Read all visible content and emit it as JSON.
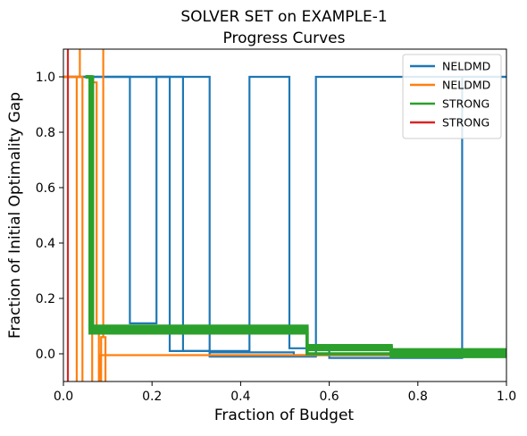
{
  "chart_data": {
    "type": "line",
    "title": "SOLVER SET on EXAMPLE-1",
    "subtitle": "Progress Curves",
    "xlabel": "Fraction of Budget",
    "ylabel": "Fraction of Initial Optimality Gap",
    "xlim": [
      0,
      1
    ],
    "ylim": [
      -0.1,
      1.1
    ],
    "xticks": [
      0.0,
      0.2,
      0.4,
      0.6,
      0.8,
      1.0
    ],
    "xtick_labels": [
      "0.0",
      "0.2",
      "0.4",
      "0.6",
      "0.8",
      "1.0"
    ],
    "yticks": [
      0.0,
      0.2,
      0.4,
      0.6,
      0.8,
      1.0
    ],
    "ytick_labels": [
      "0.0",
      "0.2",
      "0.4",
      "0.6",
      "0.8",
      "1.0"
    ],
    "grid": false,
    "legend_position": "top-right",
    "legend": [
      {
        "label": "NELDMD",
        "color": "#1f77b4"
      },
      {
        "label": "NELDMD",
        "color": "#ff7f0e"
      },
      {
        "label": "STRONG",
        "color": "#2ca02c"
      },
      {
        "label": "STRONG",
        "color": "#d62728"
      }
    ],
    "series": [
      {
        "color": "#1f77b4",
        "points": [
          [
            0,
            1
          ],
          [
            0.15,
            1
          ],
          [
            0.15,
            0.11
          ],
          [
            0.21,
            0.11
          ],
          [
            0.21,
            1
          ],
          [
            0.24,
            1
          ],
          [
            0.24,
            0.01
          ],
          [
            0.33,
            0.01
          ],
          [
            0.33,
            -0.01
          ],
          [
            0.57,
            -0.01
          ],
          [
            0.57,
            1
          ],
          [
            1,
            1
          ]
        ]
      },
      {
        "color": "#1f77b4",
        "points": [
          [
            0,
            1
          ],
          [
            0.27,
            1
          ],
          [
            0.27,
            0.01
          ],
          [
            0.42,
            0.01
          ],
          [
            0.42,
            1
          ],
          [
            0.51,
            1
          ],
          [
            0.51,
            0.02
          ],
          [
            0.6,
            0.02
          ],
          [
            0.6,
            -0.015
          ],
          [
            0.9,
            -0.015
          ],
          [
            0.9,
            1
          ],
          [
            1,
            1
          ]
        ]
      },
      {
        "color": "#1f77b4",
        "points": [
          [
            0,
            1
          ],
          [
            0.33,
            1
          ],
          [
            0.33,
            0.005
          ],
          [
            0.52,
            0.005
          ],
          [
            0.52,
            -0.005
          ],
          [
            0.74,
            -0.005
          ],
          [
            0.74,
            -0.005
          ],
          [
            1,
            -0.005
          ]
        ]
      },
      {
        "color": "#ff7f0e",
        "points": [
          [
            0,
            1
          ],
          [
            0.03,
            1
          ],
          [
            0.03,
            -0.12
          ]
        ]
      },
      {
        "color": "#ff7f0e",
        "points": [
          [
            0,
            1
          ],
          [
            0.037,
            1
          ],
          [
            0.037,
            1.12
          ]
        ]
      },
      {
        "color": "#ff7f0e",
        "points": [
          [
            0,
            1
          ],
          [
            0.043,
            1
          ],
          [
            0.043,
            -0.12
          ]
        ]
      },
      {
        "color": "#ff7f0e",
        "points": [
          [
            0.065,
            -0.12
          ],
          [
            0.065,
            0.98
          ],
          [
            0.075,
            0.98
          ],
          [
            0.075,
            0.08
          ],
          [
            0.08,
            0.08
          ],
          [
            0.08,
            -0.12
          ]
        ]
      },
      {
        "color": "#ff7f0e",
        "points": [
          [
            0.085,
            -0.12
          ],
          [
            0.085,
            0.06
          ],
          [
            0.09,
            0.06
          ],
          [
            0.09,
            1.12
          ]
        ]
      },
      {
        "color": "#ff7f0e",
        "points": [
          [
            0.095,
            -0.12
          ],
          [
            0.095,
            0.06
          ],
          [
            0.085,
            0.06
          ]
        ]
      },
      {
        "color": "#ff7f0e",
        "points": [
          [
            0.082,
            -0.12
          ],
          [
            0.082,
            -0.005
          ],
          [
            0.55,
            -0.005
          ],
          [
            0.55,
            -0.005
          ],
          [
            0.74,
            -0.005
          ]
        ]
      },
      {
        "color": "#2ca02c",
        "points": [
          [
            0.05,
            1
          ],
          [
            0.06,
            1
          ],
          [
            0.06,
            0.09
          ],
          [
            0.55,
            0.09
          ],
          [
            0.55,
            0.03
          ],
          [
            0.74,
            0.03
          ],
          [
            0.74,
            0.015
          ],
          [
            1,
            0.015
          ]
        ]
      },
      {
        "color": "#2ca02c",
        "points": [
          [
            0.05,
            1
          ],
          [
            0.063,
            1
          ],
          [
            0.063,
            0.1
          ],
          [
            0.55,
            0.1
          ],
          [
            0.55,
            0.02
          ],
          [
            0.74,
            0.02
          ],
          [
            0.74,
            0.0
          ],
          [
            1,
            0.0
          ]
        ]
      },
      {
        "color": "#2ca02c",
        "points": [
          [
            0.05,
            1
          ],
          [
            0.066,
            1
          ],
          [
            0.066,
            0.08
          ],
          [
            0.55,
            0.08
          ],
          [
            0.55,
            0.025
          ],
          [
            0.74,
            0.025
          ],
          [
            0.74,
            0.01
          ],
          [
            1,
            0.01
          ]
        ]
      },
      {
        "color": "#2ca02c",
        "points": [
          [
            0.05,
            1
          ],
          [
            0.06,
            1
          ],
          [
            0.06,
            0.075
          ],
          [
            0.55,
            0.075
          ],
          [
            0.55,
            0.0
          ],
          [
            0.74,
            0.0
          ],
          [
            0.74,
            -0.01
          ],
          [
            1,
            -0.01
          ]
        ]
      },
      {
        "color": "#2ca02c",
        "points": [
          [
            0.05,
            1
          ],
          [
            0.062,
            1
          ],
          [
            0.062,
            0.095
          ],
          [
            0.55,
            0.095
          ],
          [
            0.55,
            0.015
          ],
          [
            0.74,
            0.015
          ],
          [
            0.74,
            0.005
          ],
          [
            1,
            0.005
          ]
        ]
      },
      {
        "color": "#d62728",
        "points": [
          [
            0.01,
            -0.12
          ],
          [
            0.01,
            1.12
          ]
        ]
      }
    ]
  }
}
